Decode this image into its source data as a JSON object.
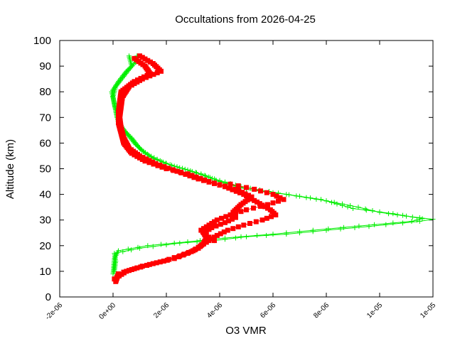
{
  "chart_data": {
    "type": "scatter",
    "title": "Occultations from 2026-04-25",
    "xlabel": "O3 VMR",
    "ylabel": "Altitude (km)",
    "xlim": [
      -2e-06,
      1.2e-05
    ],
    "ylim": [
      0,
      100
    ],
    "xticks": [
      -2e-06,
      0,
      2e-06,
      4e-06,
      6e-06,
      8e-06,
      1e-05,
      1.2e-05
    ],
    "xtick_labels": [
      "-2e-06",
      "0e+00",
      "2e-06",
      "4e-06",
      "6e-06",
      "8e-06",
      "1e-05",
      "1e-05"
    ],
    "yticks": [
      0,
      10,
      20,
      30,
      40,
      50,
      60,
      70,
      80,
      90,
      100
    ],
    "ytick_labels": [
      "0",
      "10",
      "20",
      "30",
      "40",
      "50",
      "60",
      "70",
      "80",
      "90",
      "100"
    ],
    "grid": false,
    "legend": "none",
    "series": [
      {
        "color": "#00ee00",
        "marker": "plus",
        "profiles": [
          [
            [
              5e-08,
              10
            ],
            [
              1e-07,
              14
            ],
            [
              5e-08,
              17
            ],
            [
              1e-06,
              19
            ],
            [
              2.5e-06,
              21
            ],
            [
              3.8e-06,
              22
            ],
            [
              5e-06,
              23.5
            ],
            [
              6.5e-06,
              24.5
            ],
            [
              8e-06,
              26
            ],
            [
              9.6e-06,
              27.5
            ],
            [
              1.15e-05,
              29.5
            ],
            [
              1.2e-05,
              30.3
            ],
            [
              1.1e-05,
              31.5
            ],
            [
              1e-05,
              33
            ],
            [
              9.2e-06,
              35
            ],
            [
              8e-06,
              37.5
            ],
            [
              6.5e-06,
              40
            ],
            [
              5e-06,
              42
            ],
            [
              4e-06,
              45
            ],
            [
              3.3e-06,
              48
            ],
            [
              2.3e-06,
              51
            ],
            [
              1.5e-06,
              54
            ],
            [
              1e-06,
              58
            ],
            [
              7e-07,
              62
            ],
            [
              4e-07,
              65
            ],
            [
              1.5e-07,
              70
            ],
            [
              5e-08,
              75
            ],
            [
              0.0,
              78
            ],
            [
              1e-07,
              82
            ],
            [
              4e-07,
              86
            ],
            [
              7e-07,
              90
            ],
            [
              6e-07,
              94
            ]
          ],
          [
            [
              0.0,
              9
            ],
            [
              5e-08,
              15
            ],
            [
              2e-07,
              18
            ],
            [
              1.3e-06,
              20
            ],
            [
              2.8e-06,
              21.5
            ],
            [
              4.2e-06,
              23
            ],
            [
              6e-06,
              24.5
            ],
            [
              7.5e-06,
              26
            ],
            [
              9.8e-06,
              28.2
            ],
            [
              1.12e-05,
              29.5
            ],
            [
              1.16e-05,
              30.5
            ],
            [
              1.05e-05,
              32.5
            ],
            [
              9e-06,
              34.5
            ],
            [
              7.8e-06,
              38
            ],
            [
              6.2e-06,
              40.5
            ],
            [
              4.8e-06,
              43
            ],
            [
              3.8e-06,
              46
            ],
            [
              2.8e-06,
              49.5
            ],
            [
              2e-06,
              52
            ],
            [
              1.2e-06,
              56
            ],
            [
              8e-07,
              60
            ],
            [
              5e-07,
              64
            ],
            [
              2e-07,
              68
            ],
            [
              1e-07,
              73
            ],
            [
              -5e-08,
              80
            ],
            [
              2e-07,
              84
            ],
            [
              5e-07,
              88
            ],
            [
              9e-07,
              92
            ],
            [
              9e-07,
              94
            ]
          ]
        ]
      },
      {
        "color": "#ff0000",
        "marker": "square",
        "profiles": [
          [
            [
              1e-07,
              6
            ],
            [
              2e-07,
              9
            ],
            [
              8e-07,
              11
            ],
            [
              1.5e-06,
              13
            ],
            [
              2.3e-06,
              15
            ],
            [
              2.8e-06,
              17
            ],
            [
              3.2e-06,
              19
            ],
            [
              3.4e-06,
              21
            ],
            [
              3.5e-06,
              23
            ],
            [
              3.4e-06,
              25
            ],
            [
              3.7e-06,
              27
            ],
            [
              4.2e-06,
              29
            ],
            [
              4.6e-06,
              31
            ],
            [
              4.5e-06,
              33
            ],
            [
              4.8e-06,
              36
            ],
            [
              5.2e-06,
              39
            ],
            [
              4.6e-06,
              42
            ],
            [
              3.6e-06,
              45
            ],
            [
              2.8e-06,
              48
            ],
            [
              2e-06,
              50
            ],
            [
              1.2e-06,
              53
            ],
            [
              7e-07,
              56
            ],
            [
              4e-07,
              60
            ],
            [
              3e-07,
              64
            ],
            [
              2e-07,
              68
            ],
            [
              2e-07,
              72
            ],
            [
              2.5e-07,
              76
            ],
            [
              3e-07,
              80
            ],
            [
              8e-07,
              84
            ],
            [
              1.4e-06,
              87
            ],
            [
              1.2e-06,
              90
            ],
            [
              8e-07,
              93
            ]
          ],
          [
            [
              5e-08,
              7
            ],
            [
              5e-07,
              10
            ],
            [
              1.1e-06,
              12
            ],
            [
              1.9e-06,
              14
            ],
            [
              2.5e-06,
              16
            ],
            [
              3e-06,
              18
            ],
            [
              3.3e-06,
              20
            ],
            [
              3.6e-06,
              22
            ],
            [
              3.9e-06,
              24
            ],
            [
              4.3e-06,
              26
            ],
            [
              4.9e-06,
              28
            ],
            [
              5.6e-06,
              30
            ],
            [
              6.1e-06,
              32
            ],
            [
              5.9e-06,
              34
            ],
            [
              5.4e-06,
              37
            ],
            [
              4.9e-06,
              40
            ],
            [
              4.2e-06,
              43
            ],
            [
              3.2e-06,
              46
            ],
            [
              2.4e-06,
              49
            ],
            [
              1.6e-06,
              52
            ],
            [
              1e-06,
              55
            ],
            [
              6e-07,
              58
            ],
            [
              4e-07,
              62
            ],
            [
              3e-07,
              66
            ],
            [
              2.5e-07,
              70
            ],
            [
              3e-07,
              74
            ],
            [
              3.5e-07,
              78
            ],
            [
              6e-07,
              82
            ],
            [
              1.1e-06,
              85
            ],
            [
              1.8e-06,
              88
            ],
            [
              1.5e-06,
              91
            ],
            [
              1e-06,
              94
            ]
          ],
          [
            [
              3.8e-06,
              22
            ],
            [
              3.5e-06,
              24
            ],
            [
              3.3e-06,
              26
            ],
            [
              3.6e-06,
              28
            ],
            [
              3.9e-06,
              30
            ],
            [
              4.4e-06,
              32
            ],
            [
              5e-06,
              34
            ],
            [
              5.8e-06,
              36
            ],
            [
              6.4e-06,
              38
            ],
            [
              6e-06,
              40
            ],
            [
              5.3e-06,
              42
            ],
            [
              4.4e-06,
              44
            ]
          ]
        ]
      }
    ]
  }
}
